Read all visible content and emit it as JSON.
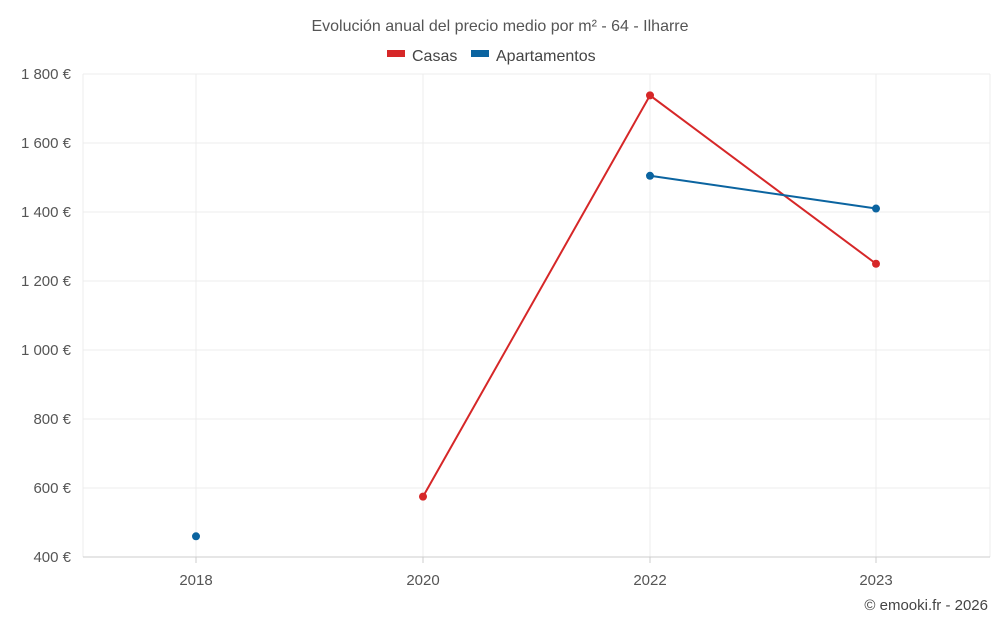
{
  "chart_data": {
    "type": "line",
    "title": "Evolución anual del precio medio por m² - 64 - Ilharre",
    "categories": [
      "2018",
      "2020",
      "2022",
      "2023"
    ],
    "y_ticks": [
      "400 €",
      "600 €",
      "800 €",
      "1 000 €",
      "1 200 €",
      "1 400 €",
      "1 600 €",
      "1 800 €"
    ],
    "y_tick_values": [
      400,
      600,
      800,
      1000,
      1200,
      1400,
      1600,
      1800
    ],
    "ylim": [
      400,
      1800
    ],
    "grid": true,
    "legend_position": "top-center",
    "series": [
      {
        "name": "Casas",
        "color": "#d62728",
        "values": [
          null,
          575,
          1738,
          1250
        ]
      },
      {
        "name": "Apartamentos",
        "color": "#0b64a0",
        "values": [
          460,
          null,
          1505,
          1410
        ]
      }
    ]
  },
  "credit": "© emooki.fr - 2026"
}
